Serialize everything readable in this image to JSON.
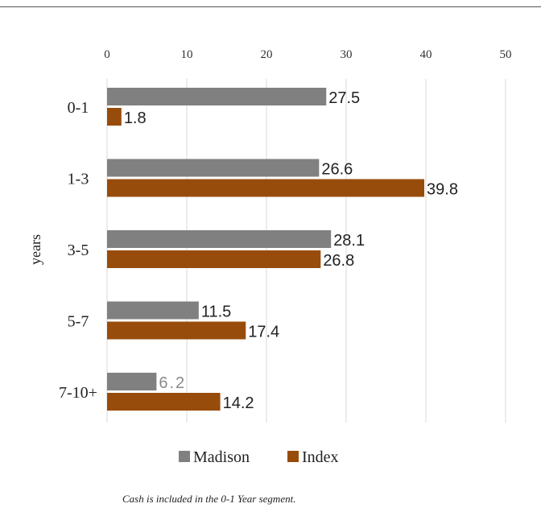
{
  "chart_data": {
    "type": "bar",
    "orientation": "horizontal",
    "categories": [
      "0-1",
      "1-3",
      "3-5",
      "5-7",
      "7-10+"
    ],
    "series": [
      {
        "name": "Madison",
        "values": [
          27.5,
          26.6,
          28.1,
          11.5,
          6.2
        ],
        "color": "#808080"
      },
      {
        "name": "Index",
        "values": [
          1.8,
          39.8,
          26.8,
          17.4,
          14.2
        ],
        "color": "#984c0c"
      }
    ],
    "value_labels": {
      "Madison": [
        "27.5",
        "26.6",
        "28.1",
        "11.5",
        "6.2"
      ],
      "Index": [
        "1.8",
        "39.8",
        "26.8",
        "17.4",
        "14.2"
      ]
    },
    "xlim": [
      0,
      50
    ],
    "xticks": [
      "0",
      "10",
      "20",
      "30",
      "40",
      "50"
    ],
    "ylabel": "years",
    "grid": "vertical",
    "legend_position": "bottom"
  },
  "note": "Cash is included in the 0-1 Year segment."
}
